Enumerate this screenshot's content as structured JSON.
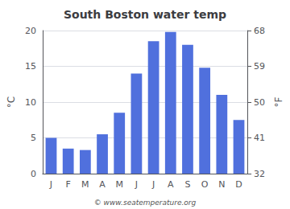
{
  "chart_data": {
    "type": "bar",
    "title": "South Boston water temp",
    "categories": [
      "J",
      "F",
      "M",
      "A",
      "M",
      "J",
      "J",
      "A",
      "S",
      "O",
      "N",
      "D"
    ],
    "values": [
      5.0,
      3.5,
      3.3,
      5.5,
      8.5,
      14.0,
      18.5,
      19.8,
      18.0,
      14.8,
      11.0,
      7.5
    ],
    "ylabel": "°C",
    "ylim": [
      0,
      20
    ],
    "yticks": [
      0,
      5,
      10,
      15,
      20
    ],
    "y2label": "°F",
    "y2lim": [
      32,
      68
    ],
    "y2ticks": [
      32,
      41,
      50,
      59,
      68
    ],
    "annotation": "© www.seatemperature.org",
    "grid": true
  }
}
